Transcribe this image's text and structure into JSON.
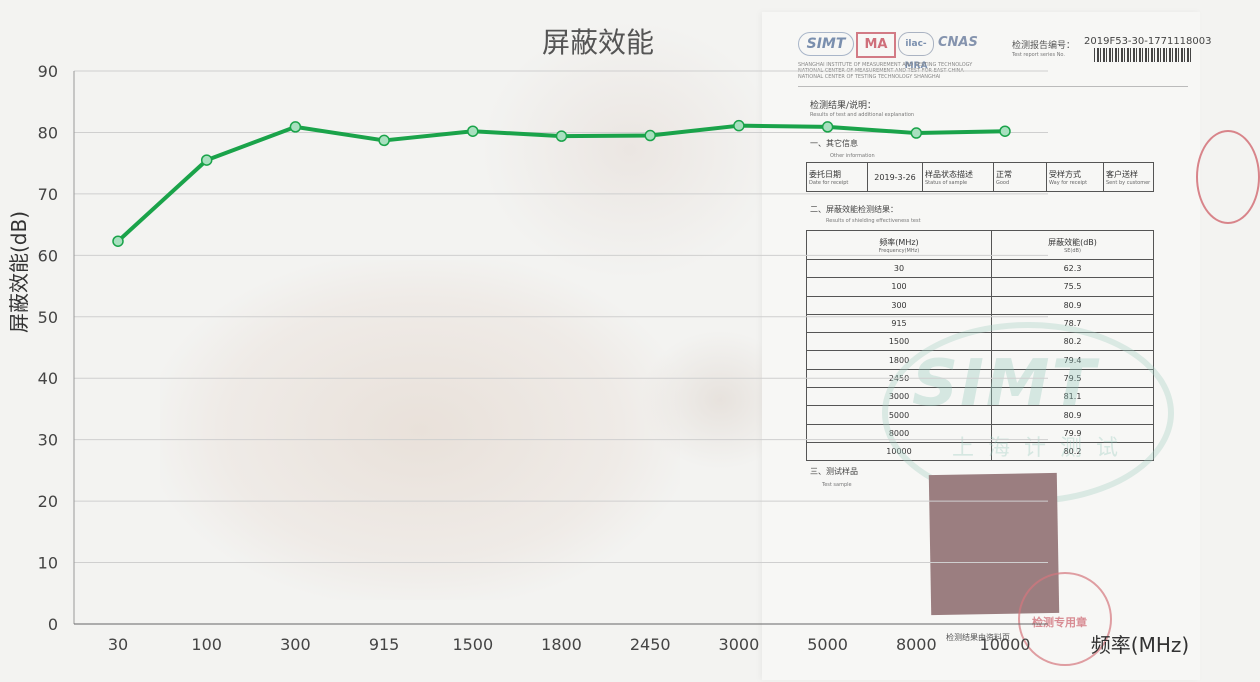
{
  "chart_data": {
    "type": "line",
    "title": "屏蔽效能",
    "xlabel": "频率(MHz)",
    "ylabel": "屏蔽效能(dB)",
    "categories": [
      "30",
      "100",
      "300",
      "915",
      "1500",
      "1800",
      "2450",
      "3000",
      "5000",
      "8000",
      "10000"
    ],
    "series": [
      {
        "values": [
          62.3,
          75.5,
          80.9,
          78.7,
          80.2,
          79.4,
          79.5,
          81.1,
          80.9,
          79.9,
          80.2
        ]
      }
    ],
    "ylim": [
      0,
      90
    ],
    "yticks": [
      "0",
      "10",
      "20",
      "30",
      "40",
      "50",
      "60",
      "70",
      "80",
      "90"
    ],
    "grid": "horizontal",
    "line_color": "#1aa34a",
    "marker_fill": "#a8e0bf"
  },
  "report": {
    "logos": {
      "simt": "SIMT",
      "ma": "MA",
      "ilac": "ilac-MRA",
      "cnas": "CNAS"
    },
    "report_no_label": "检测报告编号：",
    "report_no_en": "Test report series No.",
    "report_no": "2019F53-30-1771118003",
    "org_lines": [
      "SHANGHAI INSTITUTE OF MEASUREMENT AND TESTING TECHNOLOGY",
      "NATIONAL CENTER OF MEASUREMENT AND TEST FOR EAST CHINA",
      "NATIONAL CENTER OF TESTING TECHNOLOGY SHANGHAI"
    ],
    "results_heading": "检测结果/说明：",
    "results_heading_en": "Results of test and additional explanation",
    "section1": "一、其它信息",
    "section1_en": "Other information",
    "info": {
      "delegate_date_label": "委托日期",
      "delegate_date_label_en": "Date for receipt",
      "delegate_date": "2019-3-26",
      "sample_status_label": "样品状态描述",
      "sample_status_label_en": "Status of sample",
      "sample_status": "正常",
      "sample_status_en": "Good",
      "receive_method_label": "受样方式",
      "receive_method_label_en": "Way for receipt",
      "receive_method": "客户送样",
      "receive_method_en": "Sent by customer"
    },
    "section2": "二、屏蔽效能检测结果：",
    "section2_en": "Results of shielding effectiveness test",
    "table_headers": {
      "freq": "频率(MHz)",
      "freq_en": "Frequency(MHz)",
      "se": "屏蔽效能(dB)",
      "se_en": "SE(dB)"
    },
    "section3": "三、测试样品",
    "section3_en": "Test sample",
    "watermark": "SIMT",
    "watermark_sub": "上海计测试",
    "seal_text": "检测专用章",
    "footer_note": "检测结果由资料页"
  }
}
